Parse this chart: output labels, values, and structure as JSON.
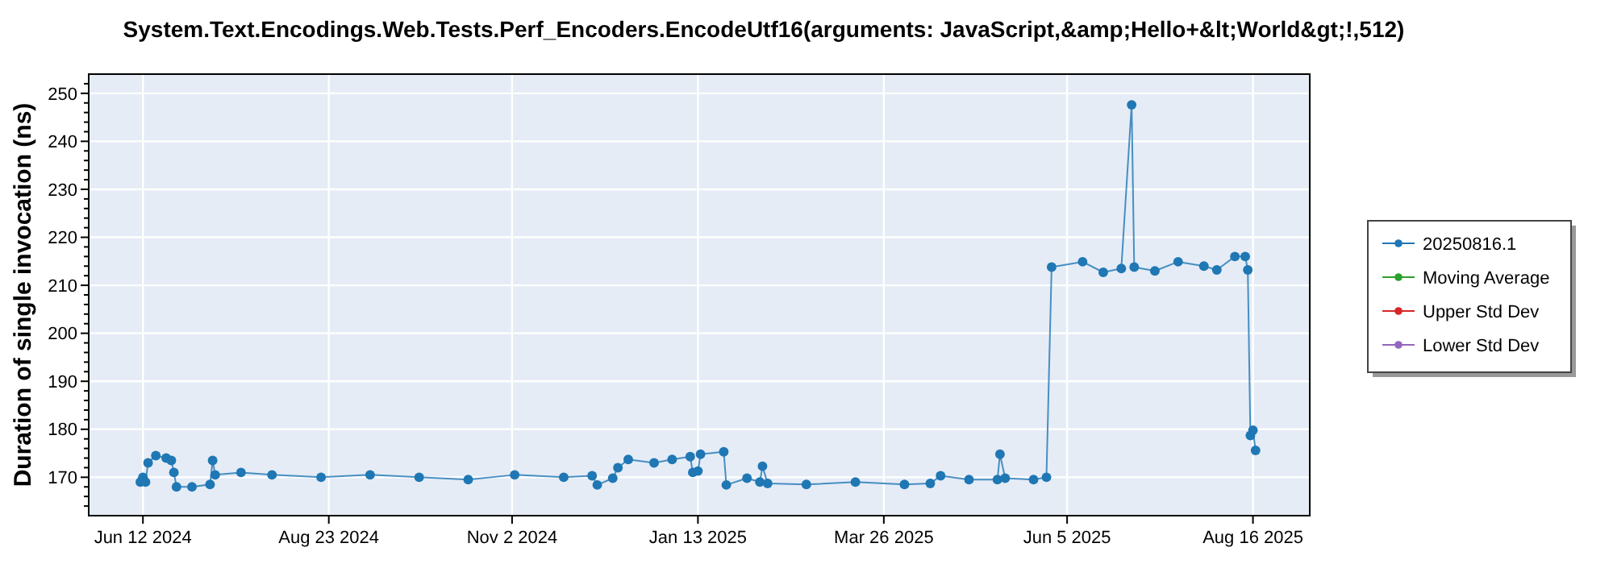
{
  "chart_data": {
    "type": "line",
    "title": "System.Text.Encodings.Web.Tests.Perf_Encoders.EncodeUtf16(arguments: JavaScript,&amp;Hello+&lt;World&gt;!,512)",
    "ylabel": "Duration of single invocation (ns)",
    "ylim": [
      162,
      254
    ],
    "yticks": [
      {
        "value": 164,
        "label": null
      },
      {
        "value": 166,
        "label": null
      },
      {
        "value": 168,
        "label": null
      },
      170,
      {
        "value": 172,
        "label": null
      },
      {
        "value": 174,
        "label": null
      },
      {
        "value": 176,
        "label": null
      },
      {
        "value": 178,
        "label": null
      },
      180,
      {
        "value": 182,
        "label": null
      },
      {
        "value": 184,
        "label": null
      },
      {
        "value": 186,
        "label": null
      },
      {
        "value": 188,
        "label": null
      },
      190,
      {
        "value": 192,
        "label": null
      },
      {
        "value": 194,
        "label": null
      },
      {
        "value": 196,
        "label": null
      },
      {
        "value": 198,
        "label": null
      },
      200,
      {
        "value": 202,
        "label": null
      },
      {
        "value": 204,
        "label": null
      },
      {
        "value": 206,
        "label": null
      },
      {
        "value": 208,
        "label": null
      },
      210,
      {
        "value": 212,
        "label": null
      },
      {
        "value": 214,
        "label": null
      },
      {
        "value": 216,
        "label": null
      },
      {
        "value": 218,
        "label": null
      },
      220,
      {
        "value": 222,
        "label": null
      },
      {
        "value": 224,
        "label": null
      },
      {
        "value": 226,
        "label": null
      },
      {
        "value": 228,
        "label": null
      },
      230,
      {
        "value": 232,
        "label": null
      },
      {
        "value": 234,
        "label": null
      },
      {
        "value": 236,
        "label": null
      },
      {
        "value": 238,
        "label": null
      },
      240,
      {
        "value": 242,
        "label": null
      },
      {
        "value": 244,
        "label": null
      },
      {
        "value": 246,
        "label": null
      },
      {
        "value": 248,
        "label": null
      },
      250,
      {
        "value": 252,
        "label": null
      }
    ],
    "xlim": [
      "2024-05-22",
      "2025-09-07"
    ],
    "xticks": [
      {
        "value": "2024-06-12",
        "label": "Jun 12 2024"
      },
      {
        "value": "2024-08-23",
        "label": "Aug 23 2024"
      },
      {
        "value": "2024-11-02",
        "label": "Nov 2 2024"
      },
      {
        "value": "2025-01-13",
        "label": "Jan 13 2025"
      },
      {
        "value": "2025-03-26",
        "label": "Mar 26 2025"
      },
      {
        "value": "2025-06-05",
        "label": "Jun 5 2025"
      },
      {
        "value": "2025-08-16",
        "label": "Aug 16 2025"
      }
    ],
    "grid": true,
    "legend": "right",
    "marker": "circle",
    "line_style": "solid",
    "series": [
      {
        "name": "20250816.1",
        "color": "#1f77b4",
        "x": [
          "2024-06-11",
          "2024-06-12",
          "2024-06-13",
          "2024-06-14",
          "2024-06-17",
          "2024-06-21",
          "2024-06-23",
          "2024-06-24",
          "2024-06-25",
          "2024-07-01",
          "2024-07-08",
          "2024-07-09",
          "2024-07-10",
          "2024-07-20",
          "2024-08-01",
          "2024-08-20",
          "2024-09-08",
          "2024-09-27",
          "2024-10-16",
          "2024-11-03",
          "2024-11-22",
          "2024-12-03",
          "2024-12-05",
          "2024-12-11",
          "2024-12-13",
          "2024-12-17",
          "2024-12-27",
          "2025-01-03",
          "2025-01-10",
          "2025-01-11",
          "2025-01-13",
          "2025-01-14",
          "2025-01-23",
          "2025-01-24",
          "2025-02-01",
          "2025-02-06",
          "2025-02-07",
          "2025-02-09",
          "2025-02-24",
          "2025-03-15",
          "2025-04-03",
          "2025-04-13",
          "2025-04-17",
          "2025-04-28",
          "2025-05-09",
          "2025-05-10",
          "2025-05-12",
          "2025-05-23",
          "2025-05-28",
          "2025-05-30",
          "2025-06-11",
          "2025-06-19",
          "2025-06-26",
          "2025-06-30",
          "2025-07-01",
          "2025-07-09",
          "2025-07-18",
          "2025-07-28",
          "2025-08-02",
          "2025-08-09",
          "2025-08-13",
          "2025-08-14",
          "2025-08-15",
          "2025-08-16",
          "2025-08-17"
        ],
        "values": [
          169,
          170,
          169,
          173,
          174.5,
          174,
          173.5,
          171,
          168,
          168,
          168.5,
          173.5,
          170.5,
          171,
          170.5,
          170,
          170.5,
          170,
          169.5,
          170.5,
          170,
          170.3,
          168.4,
          169.8,
          172,
          173.7,
          173,
          173.7,
          174.3,
          171,
          171.3,
          174.8,
          175.3,
          168.4,
          169.8,
          169,
          172.3,
          168.7,
          168.5,
          169,
          168.5,
          168.7,
          170.3,
          169.5,
          169.5,
          174.8,
          169.8,
          169.5,
          170,
          213.8,
          214.9,
          212.7,
          213.5,
          247.6,
          213.8,
          213,
          214.9,
          214,
          213.2,
          216,
          216,
          213.2,
          178.7,
          179.8,
          175.6
        ]
      },
      {
        "name": "Moving Average",
        "color": "#2ca02c"
      },
      {
        "name": "Upper Std Dev",
        "color": "#d62728"
      },
      {
        "name": "Lower Std Dev",
        "color": "#9467bd"
      }
    ]
  }
}
